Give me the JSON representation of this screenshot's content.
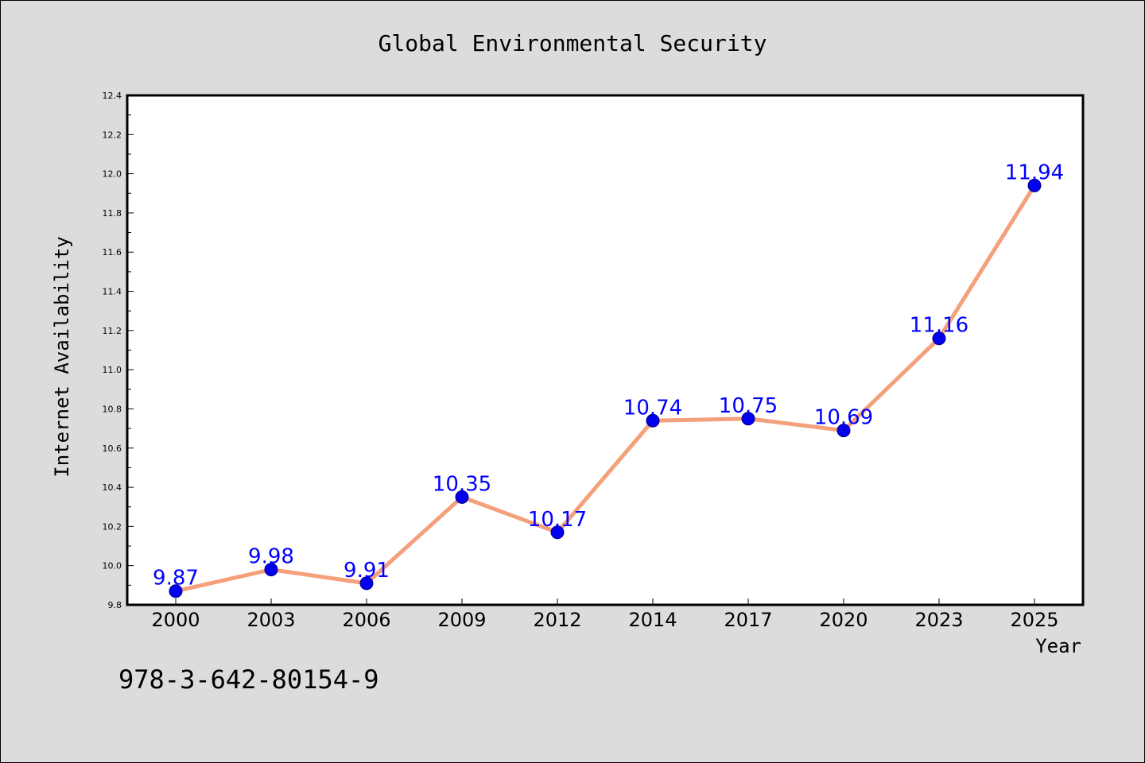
{
  "chart_data": {
    "type": "line",
    "title": "Global Environmental Security",
    "xlabel": "Year",
    "ylabel": "Internet Availability",
    "categories": [
      "2000",
      "2003",
      "2006",
      "2009",
      "2012",
      "2014",
      "2017",
      "2020",
      "2023",
      "2025"
    ],
    "series": [
      {
        "values": [
          9.87,
          9.98,
          9.91,
          10.35,
          10.17,
          10.74,
          10.75,
          10.69,
          11.16,
          11.94
        ],
        "labels": [
          "9.87",
          "9.98",
          "9.91",
          "10.35",
          "10.17",
          "10.74",
          "10.75",
          "10.69",
          "11.16",
          "11.94"
        ],
        "line_color": "#f4a07a",
        "marker_color": "#0000ee",
        "label_color": "#0000ff"
      }
    ],
    "ylim": [
      9.8,
      12.4
    ],
    "yticks": [
      "9.8",
      "10.0",
      "10.2",
      "10.4",
      "10.6",
      "10.8",
      "11.0",
      "11.2",
      "11.4",
      "11.6",
      "11.8",
      "12.0",
      "12.2",
      "12.4"
    ],
    "grid": false,
    "legend": "none"
  },
  "annotation": {
    "isbn": "978-3-642-80154-9"
  },
  "colors": {
    "background": "#dcdcdc",
    "plot_area": "#ffffff",
    "axes": "#000000"
  }
}
